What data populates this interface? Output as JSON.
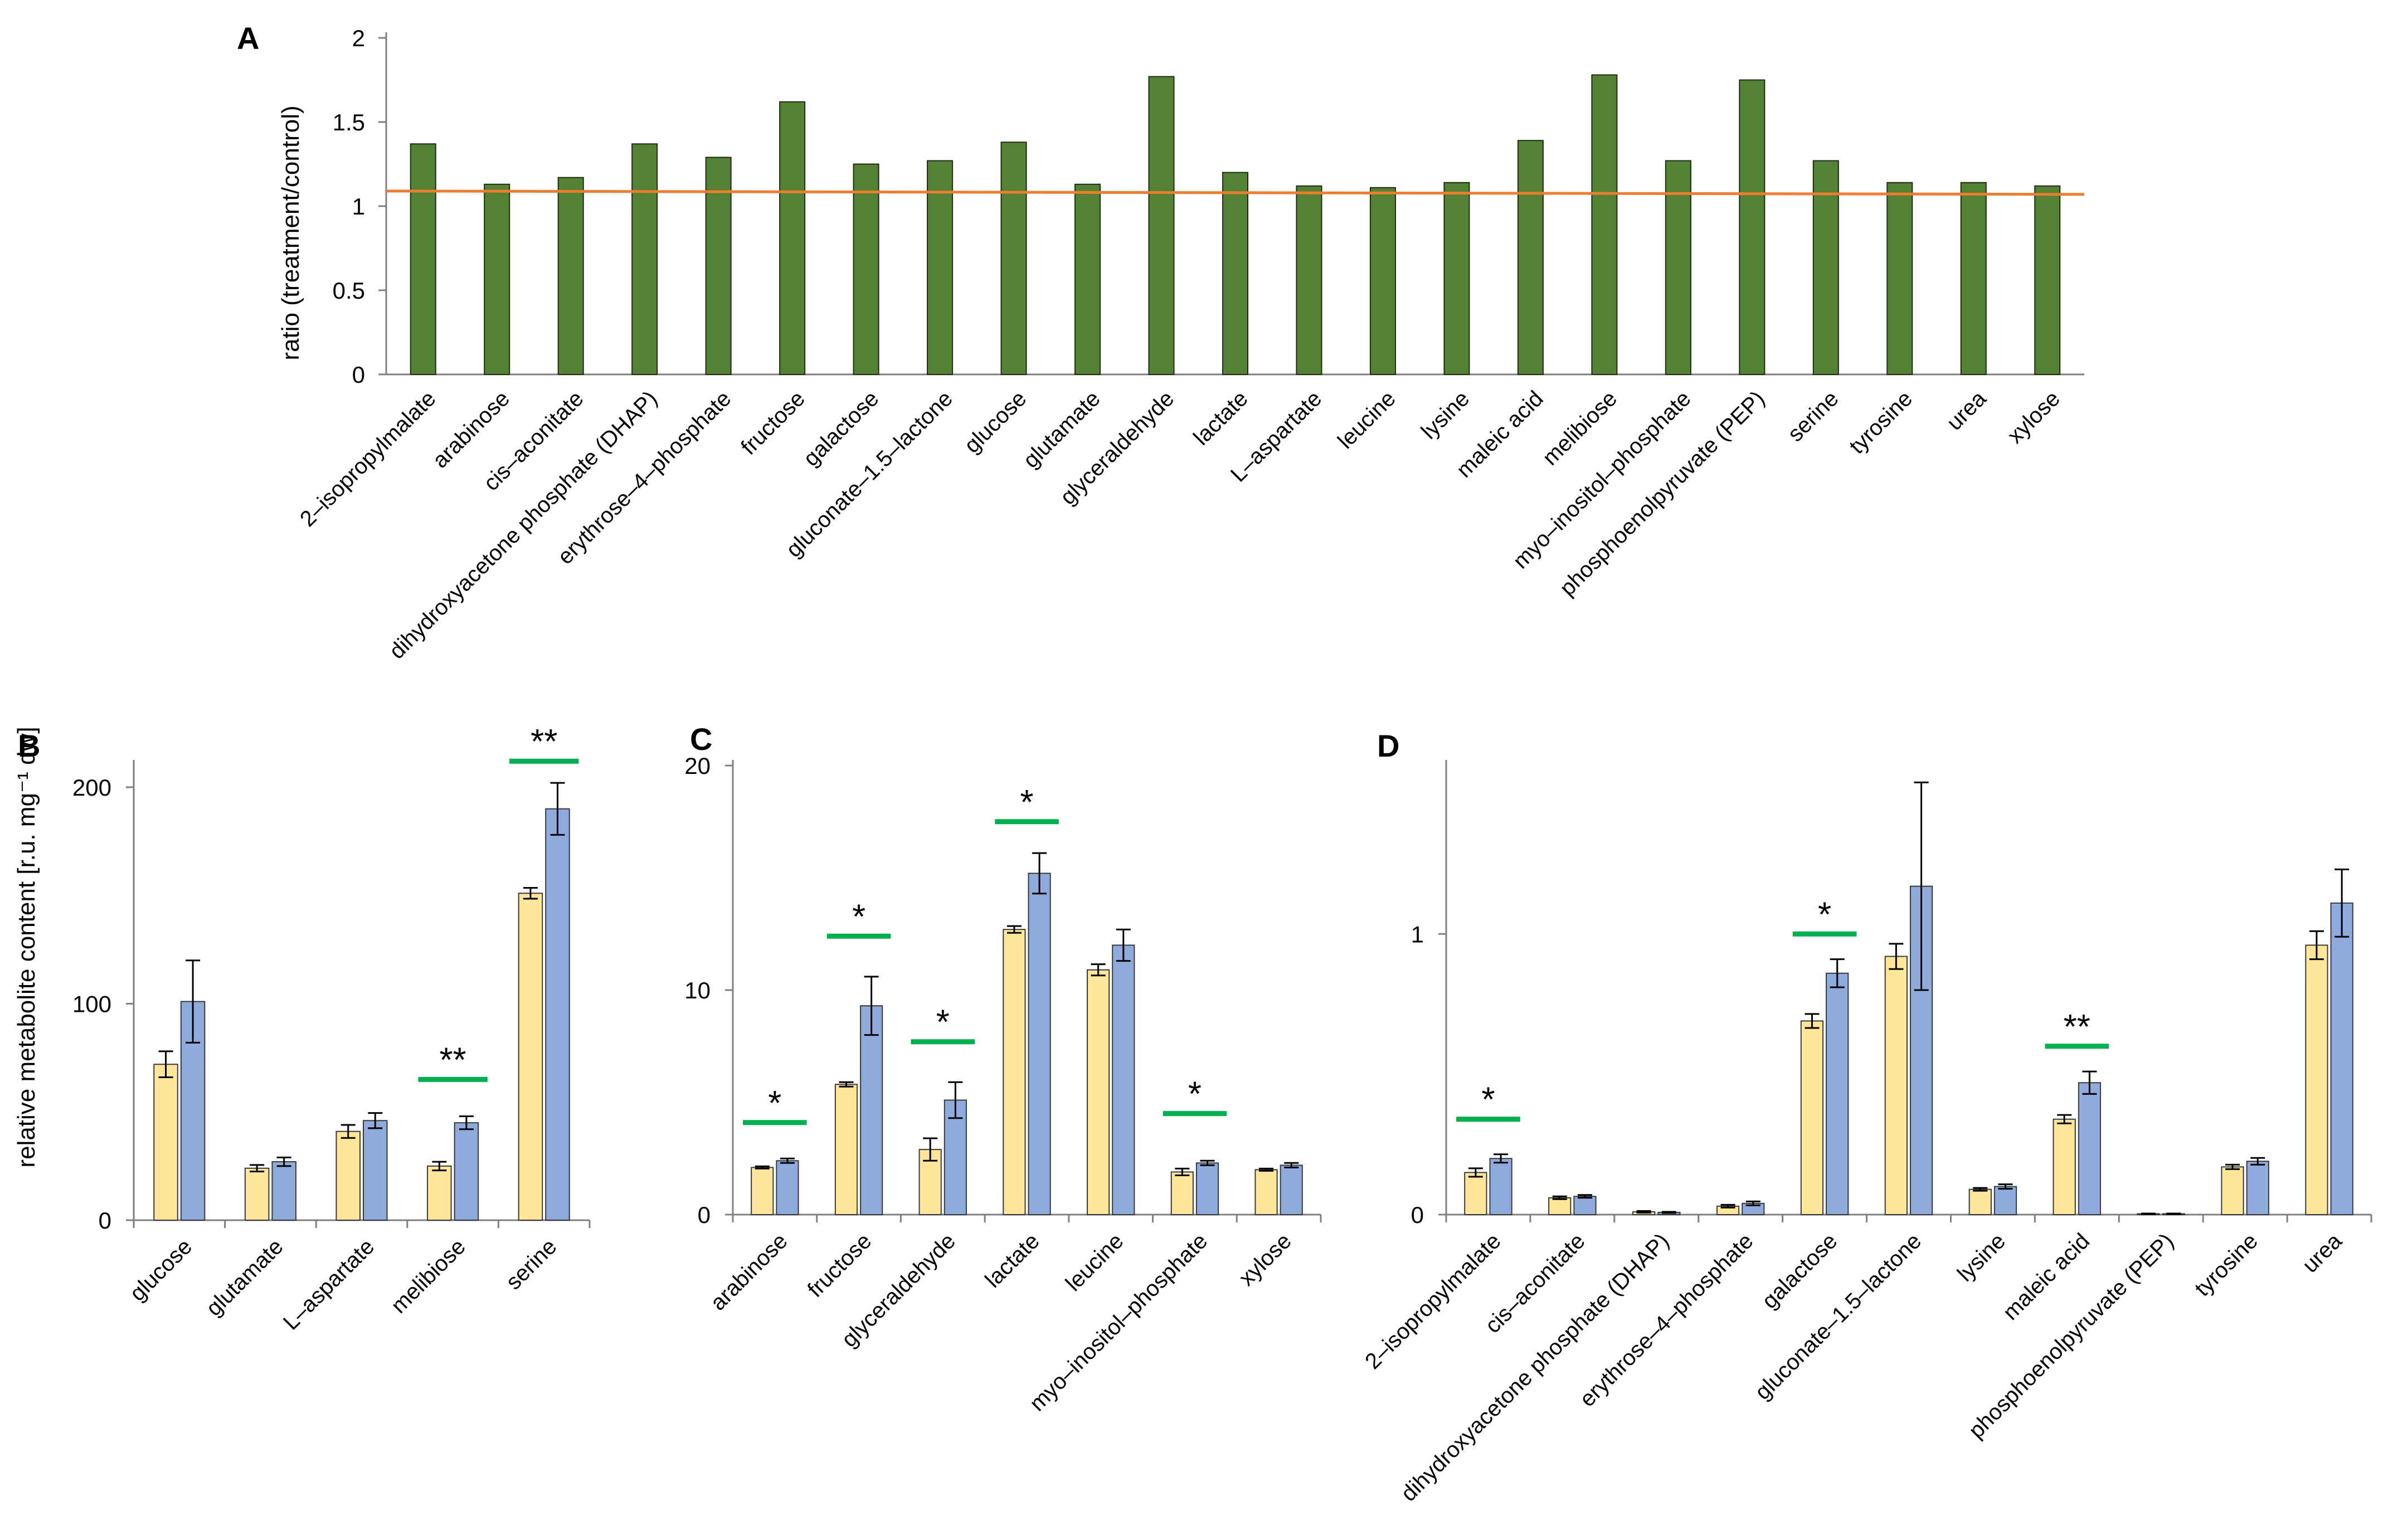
{
  "colors": {
    "ratio_bar": "#548235",
    "ratio_bar_edge": "#1f2d13",
    "threshold_line": "#ed7d31",
    "control_bar": "#ffe699",
    "treatment_bar": "#8faadc",
    "bar_edge": "#3a3a3a",
    "significance_line": "#00b050"
  },
  "shared": {
    "ylabel_bcd": "relative metabolite content [r.u. mg⁻¹ dw]"
  },
  "chart_data": [
    {
      "panel": "A",
      "type": "bar",
      "ylabel": "ratio (treatment/control)",
      "ylim": [
        0,
        2
      ],
      "yticks": [
        "0",
        "0.5",
        "1",
        "1.5",
        "2"
      ],
      "ytick_values": [
        0,
        0.5,
        1,
        1.5,
        2
      ],
      "categories": [
        "2–isopropylmalate",
        "arabinose",
        "cis–aconitate",
        "dihydroxyacetone phosphate (DHAP)",
        "erythrose–4–phosphate",
        "fructose",
        "galactose",
        "gluconate–1.5–lactone",
        "glucose",
        "glutamate",
        "glyceraldehyde",
        "lactate",
        "L–aspartate",
        "leucine",
        "lysine",
        "maleic acid",
        "melibiose",
        "myo–inositol–phosphate",
        "phosphoenolpyruvate (PEP)",
        "serine",
        "tyrosine",
        "urea",
        "xylose"
      ],
      "values": [
        1.37,
        1.13,
        1.17,
        1.37,
        1.29,
        1.62,
        1.25,
        1.27,
        1.38,
        1.13,
        1.77,
        1.2,
        1.12,
        1.11,
        1.14,
        1.39,
        1.78,
        1.27,
        1.75,
        1.27,
        1.14,
        1.14,
        1.12
      ],
      "reference_line": [
        1.09,
        1.07
      ]
    },
    {
      "panel": "B",
      "type": "bar",
      "ylim": [
        0,
        210
      ],
      "yticks": [
        "0",
        "100",
        "200"
      ],
      "ytick_values": [
        0,
        100,
        200
      ],
      "categories": [
        "glucose",
        "glutamate",
        "L–aspartate",
        "melibiose",
        "serine"
      ],
      "series": [
        {
          "values": [
            72,
            24,
            41,
            25,
            151
          ],
          "errors": [
            6,
            1.5,
            3,
            2,
            2.5
          ]
        },
        {
          "values": [
            101,
            27,
            46,
            45,
            190
          ],
          "errors": [
            19,
            2,
            3.5,
            3,
            12
          ]
        }
      ],
      "significance": [
        {
          "category": 3,
          "label": "**",
          "line_y": 65
        },
        {
          "category": 4,
          "label": "**",
          "line_y": 212
        }
      ]
    },
    {
      "panel": "C",
      "type": "bar",
      "ylim": [
        0,
        20
      ],
      "yticks": [
        "0",
        "10",
        "20"
      ],
      "ytick_values": [
        0,
        10,
        20
      ],
      "categories": [
        "arabinose",
        "fructose",
        "glyceraldehyde",
        "lactate",
        "leucine",
        "myo–inositol–phosphate",
        "xylose"
      ],
      "series": [
        {
          "values": [
            2.1,
            5.8,
            2.9,
            12.7,
            10.9,
            1.9,
            2.0
          ],
          "errors": [
            0.05,
            0.1,
            0.5,
            0.15,
            0.25,
            0.15,
            0.05
          ]
        },
        {
          "values": [
            2.4,
            9.3,
            5.1,
            15.2,
            12.0,
            2.3,
            2.2
          ],
          "errors": [
            0.1,
            1.3,
            0.8,
            0.9,
            0.7,
            0.1,
            0.1
          ]
        }
      ],
      "significance": [
        {
          "category": 0,
          "label": "*",
          "line_y": 4.1
        },
        {
          "category": 1,
          "label": "*",
          "line_y": 12.4
        },
        {
          "category": 2,
          "label": "*",
          "line_y": 7.7
        },
        {
          "category": 3,
          "label": "*",
          "line_y": 17.5
        },
        {
          "category": 5,
          "label": "*",
          "line_y": 4.5
        }
      ]
    },
    {
      "panel": "D",
      "type": "bar",
      "ylim": [
        0,
        1.6
      ],
      "yticks": [
        "0",
        "1"
      ],
      "ytick_values": [
        0,
        1
      ],
      "categories": [
        "2–isopropylmalate",
        "cis–aconitate",
        "dihydroxyacetone phosphate (DHAP)",
        "erythrose–4–phosphate",
        "galactose",
        "gluconate–1.5–lactone",
        "lysine",
        "maleic acid",
        "phosphoenolpyruvate (PEP)",
        "tyrosine",
        "urea"
      ],
      "series": [
        {
          "values": [
            0.15,
            0.06,
            0.01,
            0.03,
            0.69,
            0.92,
            0.09,
            0.34,
            0.003,
            0.17,
            0.96
          ],
          "errors": [
            0.015,
            0.005,
            0.003,
            0.005,
            0.025,
            0.045,
            0.005,
            0.015,
            0.001,
            0.008,
            0.05
          ]
        },
        {
          "values": [
            0.2,
            0.065,
            0.008,
            0.04,
            0.86,
            1.17,
            0.1,
            0.47,
            0.003,
            0.19,
            1.11
          ],
          "errors": [
            0.015,
            0.005,
            0.002,
            0.007,
            0.05,
            0.37,
            0.008,
            0.04,
            0.001,
            0.012,
            0.12
          ]
        }
      ],
      "significance": [
        {
          "category": 0,
          "label": "*",
          "line_y": 0.34
        },
        {
          "category": 4,
          "label": "*",
          "line_y": 1.0
        },
        {
          "category": 7,
          "label": "**",
          "line_y": 0.6
        }
      ]
    }
  ]
}
